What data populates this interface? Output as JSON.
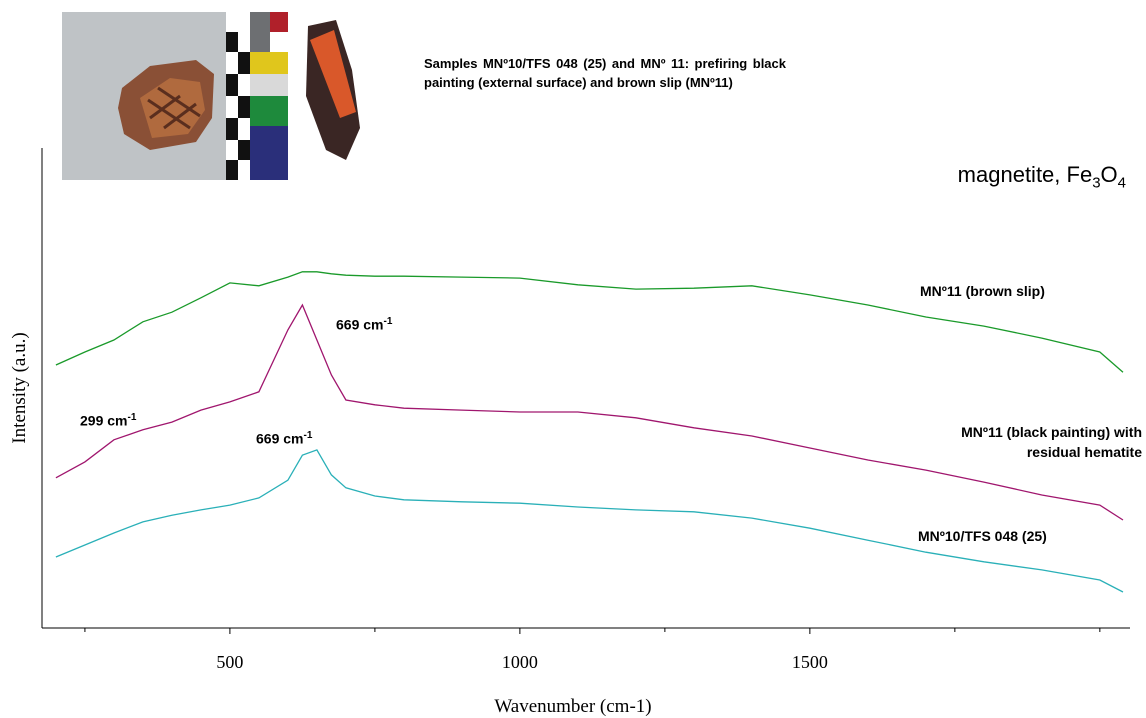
{
  "chart_data": {
    "type": "line",
    "caption": "Samples MNº10/TFS 048 (25) and MNº 11: prefiring black painting (external surface) and brown slip (MNº11)",
    "subtitle_parts": [
      {
        "text": "magnetite, Fe"
      },
      {
        "text": "3",
        "sub": true
      },
      {
        "text": "O"
      },
      {
        "text": "4",
        "sub": true
      }
    ],
    "x_label": "Wavenumber (cm-1)",
    "y_label": "Intensity (a.u.)",
    "x": [
      200,
      250,
      300,
      350,
      400,
      450,
      500,
      550,
      600,
      625,
      650,
      675,
      700,
      750,
      800,
      900,
      1000,
      1100,
      1200,
      1300,
      1400,
      1500,
      1600,
      1700,
      1800,
      1900,
      2000,
      2040
    ],
    "series": [
      {
        "name": "MNº11 (brown slip)",
        "color": "#1a9a2a",
        "values": [
          54.8,
          57.5,
          60.0,
          63.8,
          65.8,
          68.8,
          71.9,
          71.3,
          73.1,
          74.2,
          74.2,
          73.8,
          73.5,
          73.3,
          73.3,
          73.1,
          72.9,
          71.5,
          70.6,
          70.8,
          71.3,
          69.4,
          67.3,
          64.8,
          62.9,
          60.4,
          57.5,
          53.3
        ]
      },
      {
        "name": "MNº11 (black painting) with residual hematite",
        "color": "#a0166e",
        "values": [
          31.3,
          34.6,
          39.2,
          41.3,
          42.9,
          45.4,
          47.1,
          49.2,
          62.1,
          67.3,
          60.0,
          52.7,
          47.5,
          46.5,
          45.8,
          45.4,
          45.0,
          45.0,
          43.8,
          41.7,
          40.0,
          37.5,
          35.0,
          32.9,
          30.4,
          27.7,
          25.6,
          22.5
        ]
      },
      {
        "name": "MNº10/TFS 048 (25)",
        "color": "#2ab0b8",
        "values": [
          14.8,
          17.3,
          19.8,
          22.1,
          23.5,
          24.6,
          25.6,
          27.1,
          30.8,
          36.0,
          37.1,
          31.9,
          29.2,
          27.5,
          26.7,
          26.3,
          26.0,
          25.2,
          24.6,
          24.2,
          22.9,
          20.8,
          18.3,
          15.8,
          13.8,
          12.1,
          10.0,
          7.5
        ]
      }
    ],
    "annotations": [
      {
        "text": "669 cm",
        "sup": "-1"
      },
      {
        "text": "299 cm",
        "sup": "-1"
      },
      {
        "text": "669 cm",
        "sup": "-1"
      }
    ],
    "xlim": [
      176,
      2052
    ],
    "ylim": [
      0,
      100
    ],
    "xticks": [
      500,
      1000,
      1500
    ],
    "xminor_ticks": [
      250,
      750,
      1250,
      1750,
      2000
    ]
  }
}
